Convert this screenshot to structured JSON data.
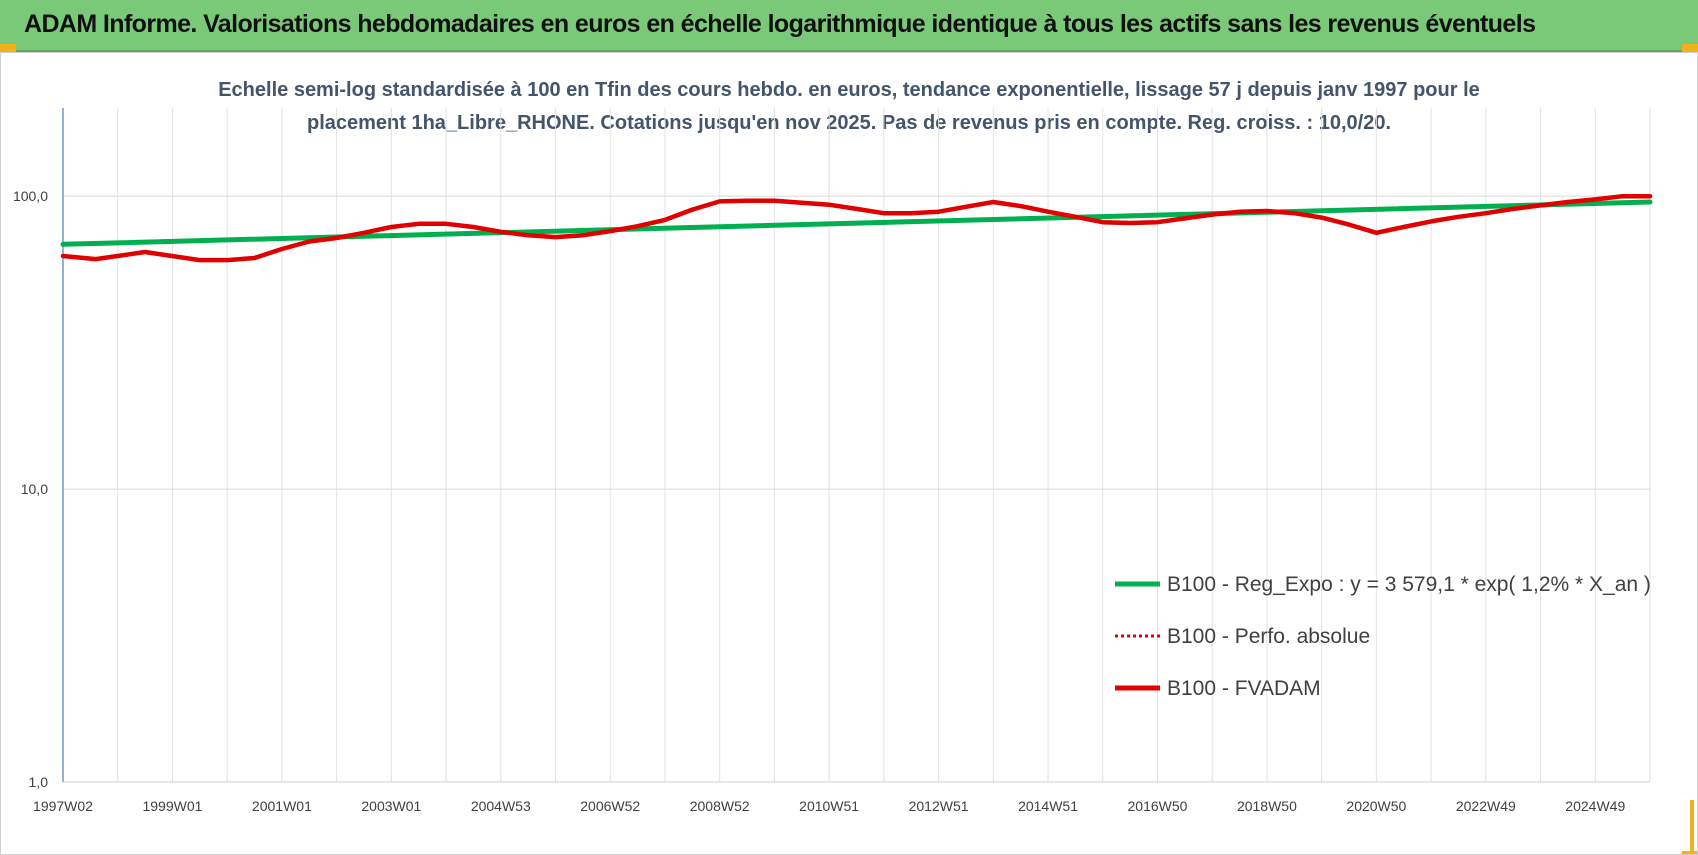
{
  "header": {
    "title": "ADAM Informe. Valorisations hebdomadaires en euros en échelle logarithmique identique à tous les actifs sans les revenus éventuels",
    "background": "#7ac979"
  },
  "chart_data": {
    "type": "line",
    "title": "",
    "subtitle_lines": [
      "Echelle semi-log standardisée à 100 en Tfin des cours hebdo. en euros, tendance exponentielle, lissage 57 j depuis janv 1997 pour le",
      "placement 1ha_Libre_RHONE. Cotations jusqu'en nov 2025.  Pas de revenus pris en compte. Reg. croiss. : 10,0/20."
    ],
    "xlabel": "",
    "ylabel": "",
    "y_scale": "log",
    "ylim": [
      1,
      200
    ],
    "y_ticks": [
      "1,0",
      "10,0",
      "100,0"
    ],
    "y_tick_values": [
      1,
      10,
      100
    ],
    "x_ticks": [
      "1997W02",
      "1999W01",
      "2001W01",
      "2003W01",
      "2004W53",
      "2006W52",
      "2008W52",
      "2010W51",
      "2012W51",
      "2014W51",
      "2016W50",
      "2018W50",
      "2020W50",
      "2022W49",
      "2024W49"
    ],
    "x_tick_years": [
      1997.0,
      1999.0,
      2001.0,
      2003.0,
      2005.0,
      2007.0,
      2009.0,
      2011.0,
      2013.0,
      2015.0,
      2017.0,
      2019.0,
      2021.0,
      2023.0,
      2025.0
    ],
    "xlim_years": [
      1997.0,
      2026.0
    ],
    "grid": true,
    "legend_position": "bottom-right",
    "series": [
      {
        "name": "B100 - Reg_Expo : y = 3 579,1 * exp( 1,2% *  X_an )",
        "color": "#00b050",
        "style": "solid",
        "x": [
          1997.0,
          2026.0
        ],
        "values": [
          68.5,
          95.5
        ]
      },
      {
        "name": "B100 - Perfo. absolue",
        "color": "#e00000",
        "style": "dotted",
        "x": [],
        "values": []
      },
      {
        "name": "B100 - FVADAM",
        "color": "#e00000",
        "style": "solid",
        "x": [
          1997.0,
          1997.6,
          1998.5,
          1999.5,
          2000.0,
          2000.5,
          2001.0,
          2001.5,
          2002.0,
          2002.5,
          2003.0,
          2003.5,
          2004.0,
          2004.5,
          2005.0,
          2005.5,
          2006.0,
          2006.5,
          2007.0,
          2007.5,
          2008.0,
          2008.5,
          2009.0,
          2009.5,
          2010.0,
          2010.5,
          2011.0,
          2011.5,
          2012.0,
          2012.5,
          2013.0,
          2013.5,
          2014.0,
          2014.5,
          2015.0,
          2015.5,
          2016.0,
          2016.5,
          2017.0,
          2017.5,
          2018.0,
          2018.5,
          2019.0,
          2019.5,
          2020.0,
          2020.5,
          2021.0,
          2021.5,
          2022.0,
          2022.5,
          2023.0,
          2023.5,
          2024.0,
          2024.5,
          2025.0,
          2025.5,
          2026.0
        ],
        "values": [
          62.5,
          61.0,
          64.5,
          60.5,
          60.5,
          61.5,
          66.0,
          70.0,
          72.0,
          75.0,
          78.5,
          80.5,
          80.5,
          78.5,
          75.5,
          73.5,
          72.5,
          73.5,
          76.0,
          79.0,
          83.0,
          90.0,
          96.0,
          96.5,
          96.5,
          95.0,
          93.5,
          90.5,
          87.5,
          87.5,
          88.5,
          92.0,
          95.5,
          92.5,
          88.5,
          85.0,
          81.5,
          81.0,
          81.5,
          84.0,
          86.5,
          88.5,
          89.0,
          87.5,
          84.5,
          80.0,
          75.0,
          78.5,
          82.0,
          85.0,
          87.5,
          90.5,
          93.0,
          95.5,
          97.5,
          100.0,
          100.0
        ]
      }
    ]
  }
}
